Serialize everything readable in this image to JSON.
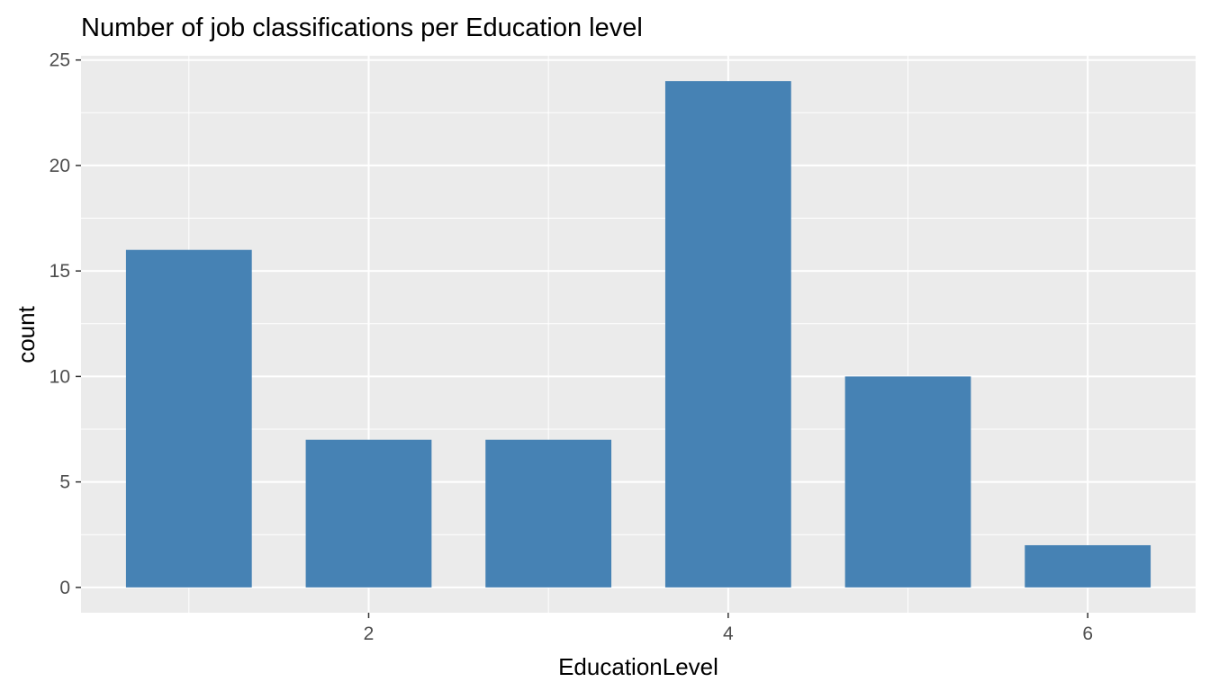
{
  "chart_data": {
    "type": "bar",
    "title": "Number of job classifications per Education level",
    "xlabel": "EducationLevel",
    "ylabel": "count",
    "x": [
      1,
      2,
      3,
      4,
      5,
      6
    ],
    "values": [
      16,
      7,
      7,
      24,
      10,
      2
    ],
    "xlim": [
      0.4,
      6.6
    ],
    "ylim": [
      -1.2,
      25.2
    ],
    "x_ticks": [
      2,
      4,
      6
    ],
    "y_ticks": [
      0,
      5,
      10,
      15,
      20,
      25
    ],
    "grid": true,
    "legend": "none",
    "colors": {
      "bar": "#4682B4",
      "panel": "#EBEBEB",
      "grid": "#FFFFFF",
      "tick_text": "#4D4D4D",
      "tick_mark": "#333333"
    }
  }
}
